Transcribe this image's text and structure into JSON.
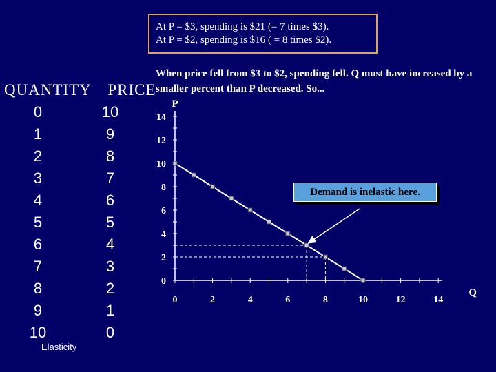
{
  "callout": {
    "line1": "At P = $3, spending is $21 (= 7 times $3).",
    "line2": "At P = $2, spending is $16 ( = 8 times $2)."
  },
  "note": "When price fell from $3 to $2, spending fell.  Q must have increased by a smaller percent than P decreased.  So...",
  "table": {
    "header_quantity": "QUANTITY",
    "header_price": "PRICE",
    "rows": [
      {
        "q": "0",
        "p": "10"
      },
      {
        "q": "1",
        "p": "9"
      },
      {
        "q": "2",
        "p": "8"
      },
      {
        "q": "3",
        "p": "7"
      },
      {
        "q": "4",
        "p": "6"
      },
      {
        "q": "5",
        "p": "5"
      },
      {
        "q": "6",
        "p": "4"
      },
      {
        "q": "7",
        "p": "3"
      },
      {
        "q": "8",
        "p": "2"
      },
      {
        "q": "9",
        "p": "1"
      },
      {
        "q": "10",
        "p": "0"
      }
    ]
  },
  "elasticity_label": "Elasticity",
  "annotation": "Demand is inelastic here.",
  "chart_data": {
    "type": "line",
    "xlabel": "Q",
    "ylabel": "P",
    "xlim": [
      0,
      14
    ],
    "ylim": [
      0,
      14
    ],
    "xticks": [
      0,
      2,
      4,
      6,
      8,
      10,
      12,
      14
    ],
    "yticks": [
      0,
      2,
      4,
      6,
      8,
      10,
      12,
      14
    ],
    "series": [
      {
        "x": [
          0,
          1,
          2,
          3,
          4,
          5,
          6,
          7,
          8,
          9,
          10
        ],
        "y": [
          10,
          9,
          8,
          7,
          6,
          5,
          4,
          3,
          2,
          1,
          0
        ]
      }
    ],
    "highlight_points": [
      {
        "x": 7,
        "y": 3
      },
      {
        "x": 8,
        "y": 2
      }
    ],
    "grid": false,
    "colors": {
      "line": "#ffffff",
      "marker_fill": "#cccccc",
      "guide": "#ffffff"
    }
  }
}
